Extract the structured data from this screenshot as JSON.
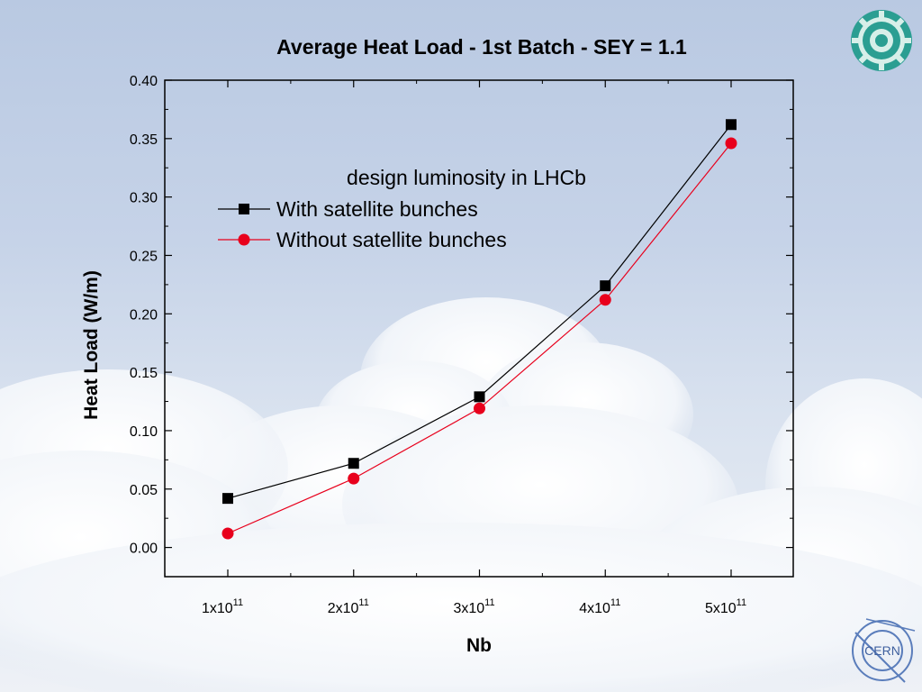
{
  "chart_data": {
    "type": "line",
    "title": "Average Heat Load - 1st Batch - SEY = 1.1",
    "xlabel": "Nb",
    "ylabel": "Heat Load (W/m)",
    "categories": [
      "1x10^11",
      "2x10^11",
      "3x10^11",
      "4x10^11",
      "5x10^11"
    ],
    "x_tick_labels": [
      {
        "base": "1x10",
        "exp": "11"
      },
      {
        "base": "2x10",
        "exp": "11"
      },
      {
        "base": "3x10",
        "exp": "11"
      },
      {
        "base": "4x10",
        "exp": "11"
      },
      {
        "base": "5x10",
        "exp": "11"
      }
    ],
    "y_tick_labels": [
      "0.00",
      "0.05",
      "0.10",
      "0.15",
      "0.20",
      "0.25",
      "0.30",
      "0.35",
      "0.40"
    ],
    "ylim": [
      -0.025,
      0.4
    ],
    "legend_title": "design luminosity in LHCb",
    "legend_position": "top-left",
    "series": [
      {
        "name": "With satellite bunches",
        "color": "#000000",
        "marker": "square",
        "values": [
          0.042,
          0.072,
          0.129,
          0.224,
          0.362
        ]
      },
      {
        "name": "Without satellite bunches",
        "color": "#e8001c",
        "marker": "circle",
        "values": [
          0.012,
          0.059,
          0.119,
          0.212,
          0.346
        ]
      }
    ],
    "grid": false
  },
  "logos": {
    "top_right": "gear-emblem-logo",
    "bottom_right": "CERN"
  }
}
